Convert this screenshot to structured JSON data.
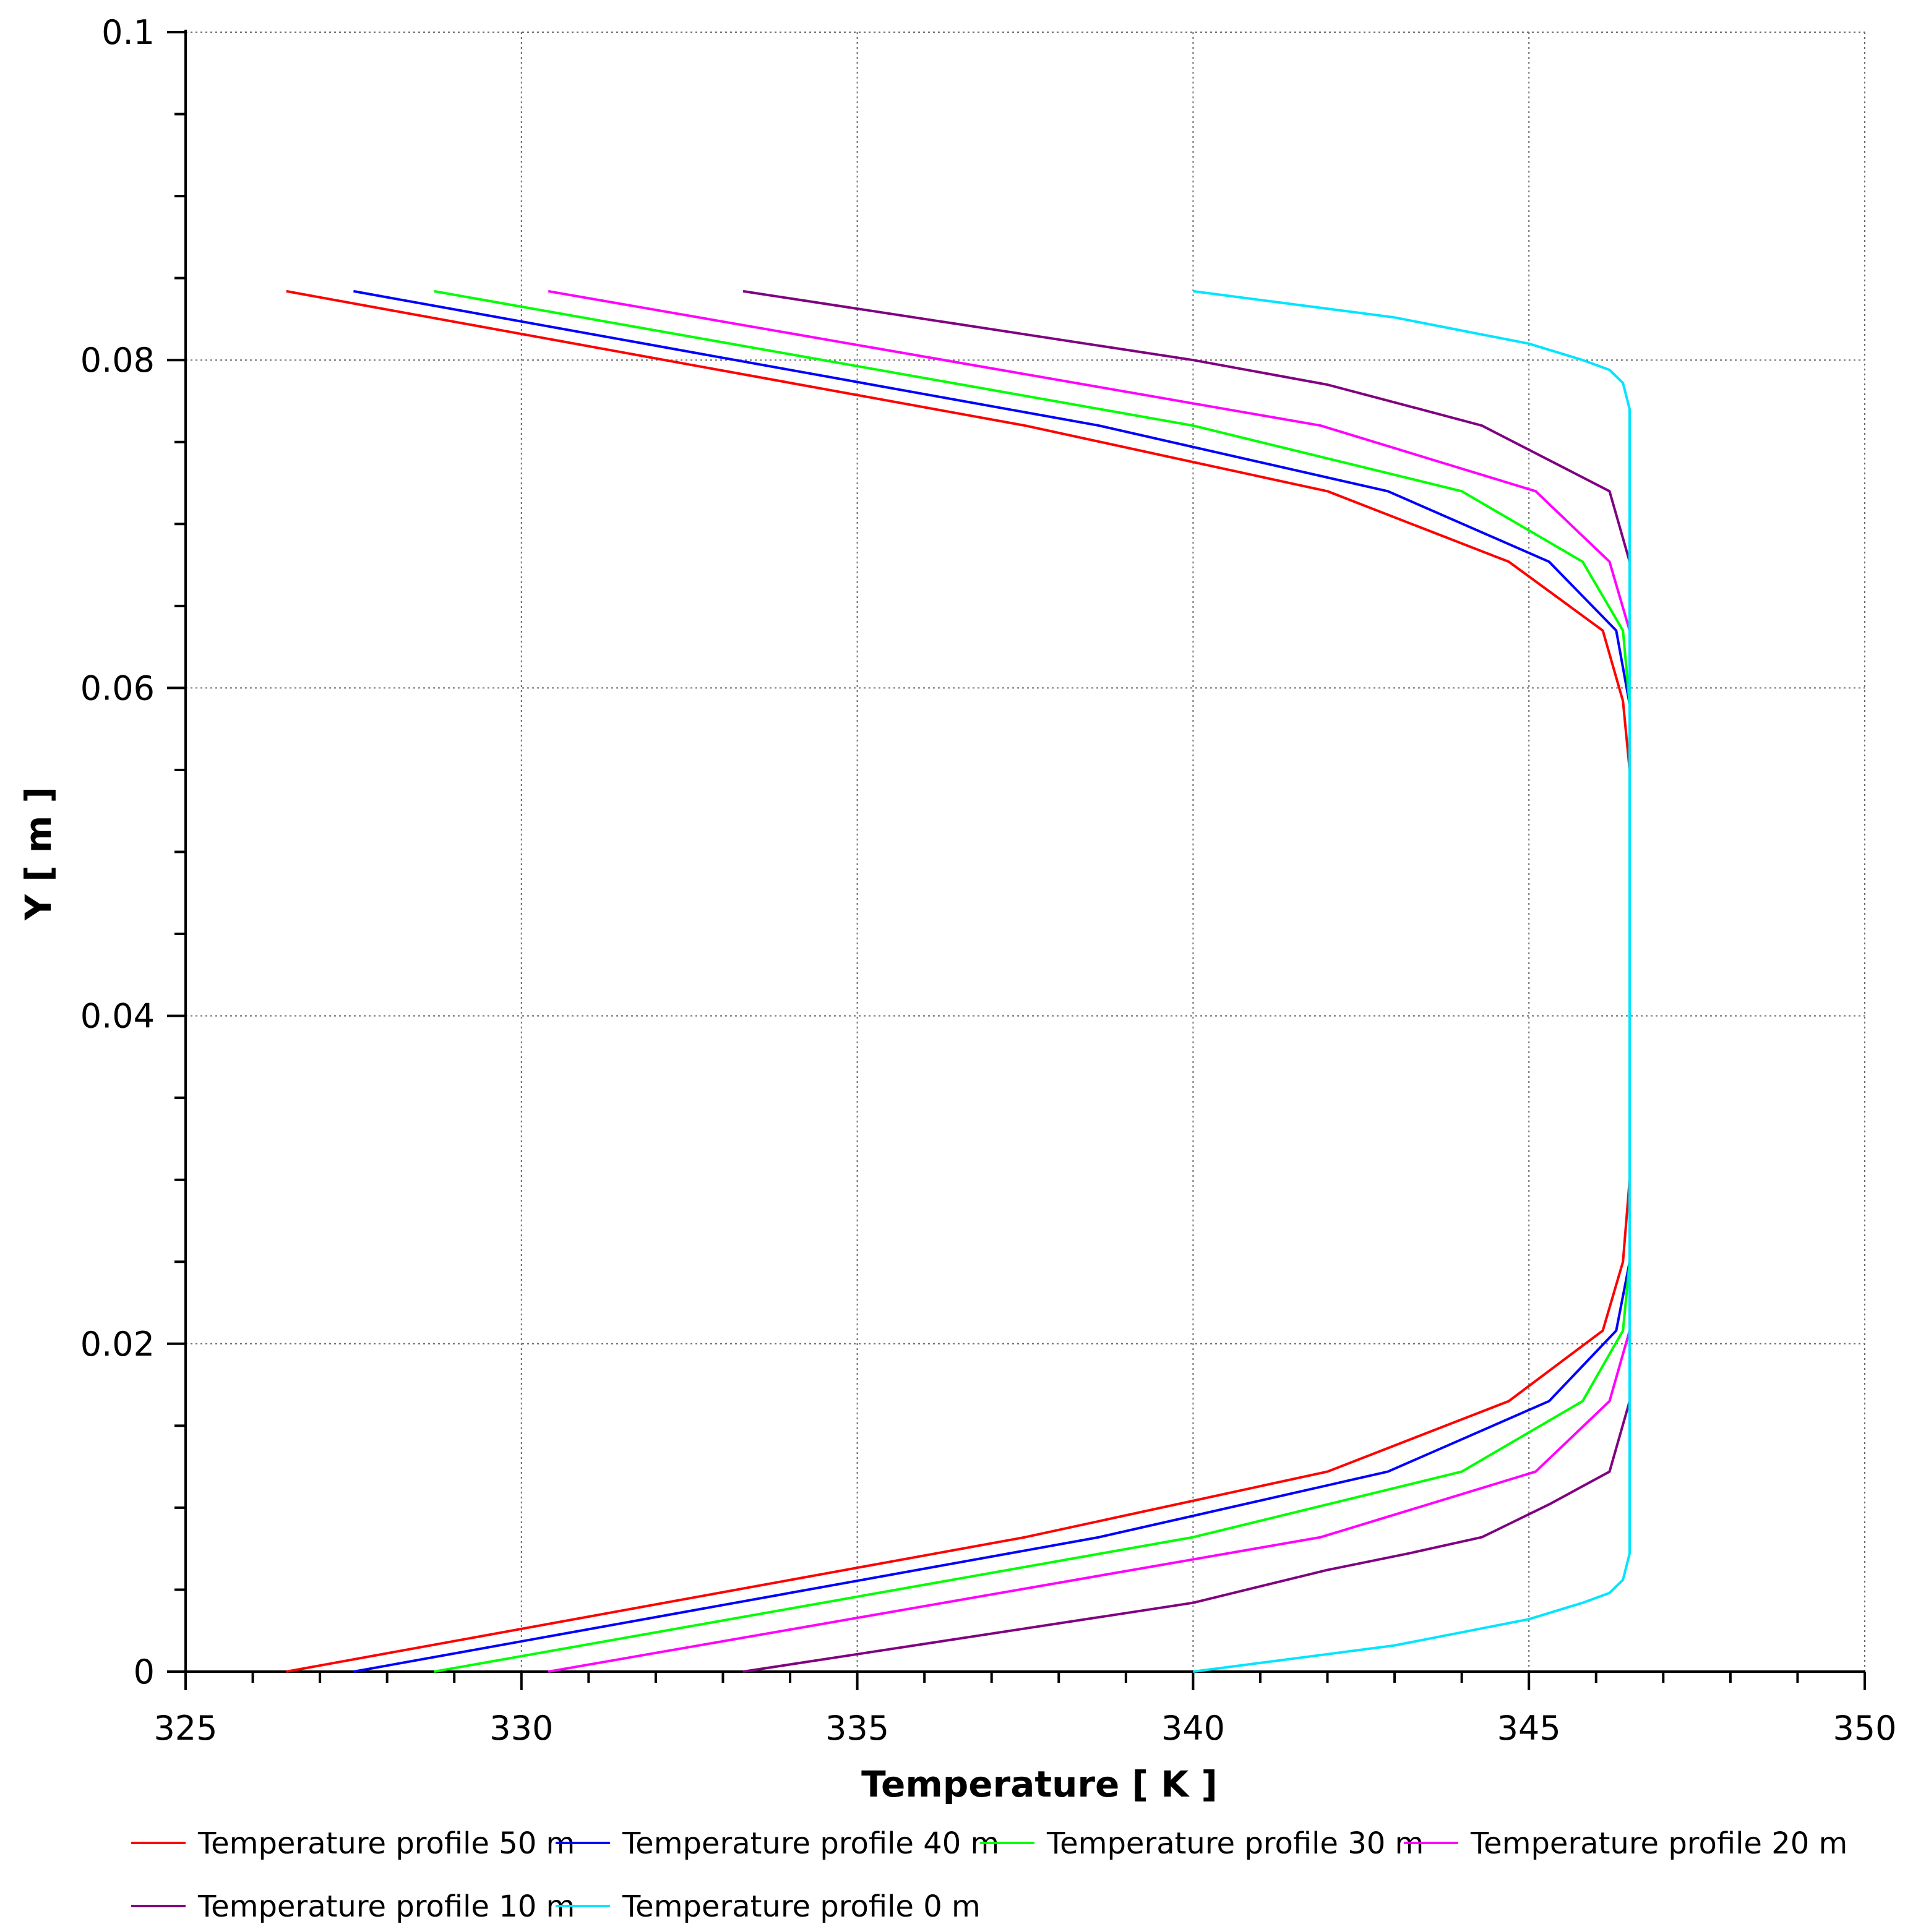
{
  "chart_data": {
    "type": "line",
    "xlabel": "Temperature [ K ]",
    "ylabel": "Y [ m ]",
    "xlim": [
      325,
      350
    ],
    "ylim": [
      0,
      0.1
    ],
    "x_ticks": [
      "325",
      "330",
      "335",
      "340",
      "345",
      "350"
    ],
    "y_ticks": [
      "0",
      "0.02",
      "0.04",
      "0.06",
      "0.08",
      "0.1"
    ],
    "grid": true,
    "legend_position": "bottom",
    "series": [
      {
        "name": "Temperature profile 50 m",
        "color": "#ff0000",
        "points": [
          [
            326.5,
            0
          ],
          [
            337.5,
            0.0082
          ],
          [
            342,
            0.0122
          ],
          [
            344.7,
            0.0165
          ],
          [
            346.1,
            0.0208
          ],
          [
            346.4,
            0.025
          ],
          [
            346.5,
            0.03
          ],
          [
            346.5,
            0.055
          ],
          [
            346.4,
            0.0592
          ],
          [
            346.1,
            0.0635
          ],
          [
            344.7,
            0.0677
          ],
          [
            342,
            0.072
          ],
          [
            337.5,
            0.076
          ],
          [
            326.5,
            0.0842
          ]
        ]
      },
      {
        "name": "Temperature profile 40 m",
        "color": "#0000ff",
        "points": [
          [
            327.5,
            0
          ],
          [
            338.6,
            0.0082
          ],
          [
            342.9,
            0.0122
          ],
          [
            345.3,
            0.0165
          ],
          [
            346.3,
            0.0208
          ],
          [
            346.5,
            0.025
          ],
          [
            346.5,
            0.059
          ],
          [
            346.3,
            0.0635
          ],
          [
            345.3,
            0.0677
          ],
          [
            342.9,
            0.072
          ],
          [
            338.6,
            0.076
          ],
          [
            327.5,
            0.0842
          ]
        ]
      },
      {
        "name": "Temperature profile 30 m",
        "color": "#00ff00",
        "points": [
          [
            328.7,
            0
          ],
          [
            340,
            0.0082
          ],
          [
            344,
            0.0122
          ],
          [
            345.8,
            0.0165
          ],
          [
            346.4,
            0.0208
          ],
          [
            346.5,
            0.025
          ],
          [
            346.5,
            0.059
          ],
          [
            346.4,
            0.0635
          ],
          [
            345.8,
            0.0677
          ],
          [
            344,
            0.072
          ],
          [
            340,
            0.076
          ],
          [
            328.7,
            0.0842
          ]
        ]
      },
      {
        "name": "Temperature profile 20 m",
        "color": "#ff00ff",
        "points": [
          [
            330.4,
            0
          ],
          [
            341.9,
            0.0082
          ],
          [
            345.1,
            0.0122
          ],
          [
            346.2,
            0.0165
          ],
          [
            346.5,
            0.0208
          ],
          [
            346.5,
            0.0635
          ],
          [
            346.2,
            0.0677
          ],
          [
            345.1,
            0.072
          ],
          [
            341.9,
            0.076
          ],
          [
            330.4,
            0.0842
          ]
        ]
      },
      {
        "name": "Temperature profile 10 m",
        "color": "#800080",
        "points": [
          [
            333.3,
            0
          ],
          [
            340,
            0.0042
          ],
          [
            342,
            0.0062
          ],
          [
            343.2,
            0.0072
          ],
          [
            344.3,
            0.0082
          ],
          [
            345.3,
            0.0102
          ],
          [
            346.2,
            0.0122
          ],
          [
            346.5,
            0.0165
          ],
          [
            346.5,
            0.0677
          ],
          [
            346.2,
            0.072
          ],
          [
            344.3,
            0.076
          ],
          [
            343.2,
            0.0772
          ],
          [
            342,
            0.0785
          ],
          [
            340,
            0.08
          ],
          [
            333.3,
            0.0842
          ]
        ]
      },
      {
        "name": "Temperature profile 0 m",
        "color": "#00e5ff",
        "points": [
          [
            340,
            0
          ],
          [
            343,
            0.0016
          ],
          [
            345,
            0.0032
          ],
          [
            345.8,
            0.0042
          ],
          [
            346.2,
            0.0048
          ],
          [
            346.4,
            0.0056
          ],
          [
            346.5,
            0.0072
          ],
          [
            346.5,
            0.077
          ],
          [
            346.4,
            0.0786
          ],
          [
            346.2,
            0.0794
          ],
          [
            345.8,
            0.08
          ],
          [
            345,
            0.081
          ],
          [
            343,
            0.0826
          ],
          [
            340,
            0.0842
          ]
        ]
      }
    ]
  }
}
